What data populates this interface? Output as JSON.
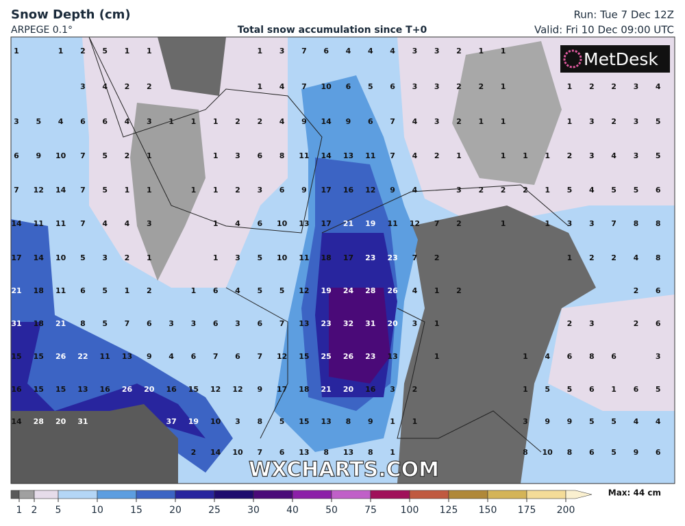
{
  "header": {
    "title": "Snow Depth (cm)",
    "model": "ARPEGE 0.1°",
    "subtitle": "Total snow accumulation since T+0",
    "run": "Run: Tue 7 Dec 12Z",
    "valid": "Valid: Fri 10 Dec 09:00 UTC"
  },
  "logo": "MetDesk",
  "watermark": "WXCHARTS.COM",
  "grid": {
    "rows": [
      [
        1,
        null,
        1,
        2,
        5,
        1,
        1,
        null,
        null,
        null,
        null,
        1,
        3,
        7,
        6,
        4,
        4,
        4,
        3,
        3,
        2,
        1,
        1,
        null,
        null,
        null,
        null,
        null,
        null,
        null
      ],
      [
        null,
        null,
        null,
        3,
        4,
        2,
        2,
        null,
        null,
        null,
        null,
        1,
        4,
        7,
        10,
        6,
        5,
        6,
        3,
        3,
        2,
        2,
        1,
        null,
        null,
        1,
        2,
        2,
        3,
        4
      ],
      [
        3,
        5,
        4,
        6,
        6,
        4,
        3,
        1,
        1,
        1,
        2,
        2,
        4,
        9,
        14,
        9,
        6,
        7,
        4,
        3,
        2,
        1,
        1,
        null,
        null,
        1,
        3,
        2,
        3,
        5
      ],
      [
        6,
        9,
        10,
        7,
        5,
        2,
        1,
        null,
        null,
        1,
        3,
        6,
        8,
        11,
        14,
        13,
        11,
        7,
        4,
        2,
        1,
        null,
        1,
        1,
        1,
        2,
        3,
        4,
        3,
        5
      ],
      [
        7,
        12,
        14,
        7,
        5,
        1,
        1,
        null,
        1,
        1,
        2,
        3,
        6,
        9,
        17,
        16,
        12,
        9,
        4,
        null,
        3,
        2,
        2,
        2,
        1,
        5,
        4,
        5,
        5,
        6
      ],
      [
        14,
        11,
        11,
        7,
        4,
        4,
        3,
        null,
        null,
        1,
        4,
        6,
        10,
        13,
        17,
        21,
        19,
        11,
        12,
        7,
        2,
        null,
        1,
        null,
        1,
        3,
        3,
        7,
        8,
        8
      ],
      [
        17,
        14,
        10,
        5,
        3,
        2,
        1,
        null,
        null,
        1,
        3,
        5,
        10,
        11,
        18,
        17,
        23,
        23,
        7,
        2,
        null,
        null,
        null,
        null,
        null,
        1,
        2,
        2,
        4,
        8
      ],
      [
        21,
        18,
        11,
        6,
        5,
        1,
        2,
        null,
        1,
        6,
        4,
        5,
        5,
        12,
        19,
        24,
        28,
        26,
        4,
        1,
        2,
        null,
        null,
        null,
        null,
        null,
        null,
        null,
        2,
        6
      ],
      [
        31,
        18,
        21,
        8,
        5,
        7,
        6,
        3,
        3,
        6,
        3,
        6,
        7,
        13,
        23,
        32,
        31,
        20,
        3,
        1,
        null,
        null,
        null,
        null,
        null,
        2,
        3,
        null,
        2,
        6
      ],
      [
        15,
        15,
        26,
        22,
        11,
        13,
        9,
        4,
        6,
        7,
        6,
        7,
        12,
        15,
        25,
        26,
        23,
        13,
        null,
        1,
        null,
        null,
        null,
        1,
        4,
        6,
        8,
        6,
        null,
        3
      ],
      [
        16,
        15,
        15,
        13,
        16,
        26,
        20,
        16,
        15,
        12,
        12,
        9,
        17,
        18,
        21,
        20,
        16,
        3,
        2,
        null,
        null,
        null,
        null,
        1,
        5,
        5,
        6,
        1,
        6,
        5
      ],
      [
        14,
        28,
        20,
        31,
        null,
        null,
        null,
        37,
        19,
        10,
        3,
        8,
        5,
        15,
        13,
        8,
        9,
        1,
        1,
        null,
        null,
        null,
        null,
        3,
        9,
        9,
        5,
        5,
        4,
        4
      ],
      [
        null,
        null,
        null,
        null,
        null,
        null,
        null,
        null,
        2,
        14,
        10,
        7,
        6,
        13,
        8,
        13,
        8,
        1,
        null,
        null,
        null,
        null,
        null,
        8,
        10,
        8,
        6,
        5,
        9,
        6
      ]
    ]
  },
  "legend": {
    "ticks": [
      1,
      2,
      5,
      10,
      15,
      20,
      25,
      30,
      40,
      50,
      75,
      100,
      125,
      150,
      175,
      200
    ],
    "max": "Max: 44 cm",
    "colors": [
      "#5a5a5a",
      "#a0a0a0",
      "#e6dcea",
      "#b4d6f6",
      "#5d9ee0",
      "#3c64c4",
      "#28259e",
      "#1e0b6e",
      "#4a0a78",
      "#8c20a8",
      "#c060c8",
      "#a0105a",
      "#c05a40",
      "#b08838",
      "#d4b458",
      "#f4dc98",
      "#faf0d0"
    ]
  }
}
